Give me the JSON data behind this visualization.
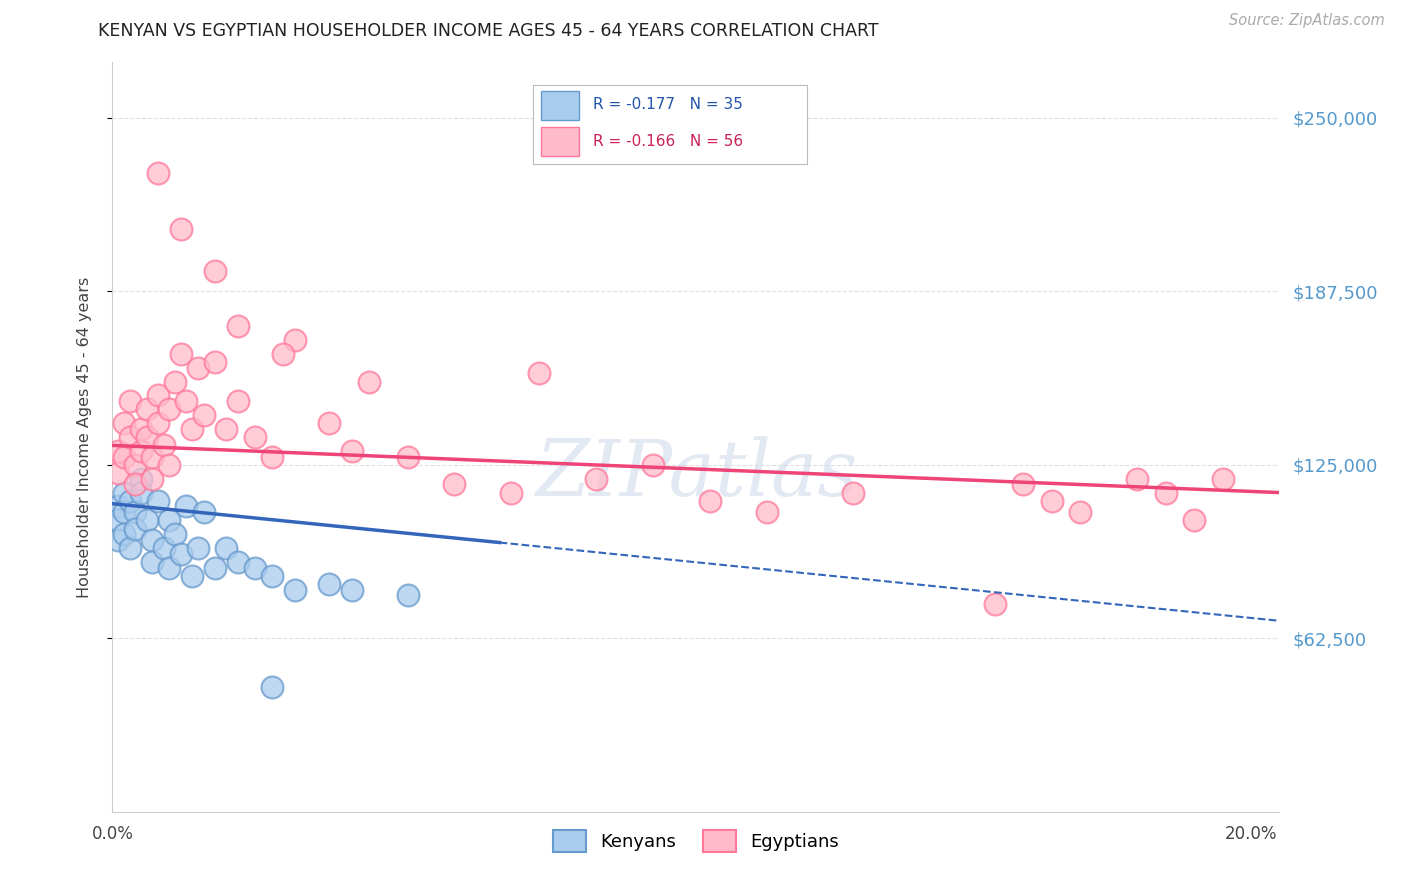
{
  "title": "KENYAN VS EGYPTIAN HOUSEHOLDER INCOME AGES 45 - 64 YEARS CORRELATION CHART",
  "source": "Source: ZipAtlas.com",
  "ylabel": "Householder Income Ages 45 - 64 years",
  "xlim": [
    0.0,
    0.205
  ],
  "ylim": [
    0,
    270000
  ],
  "ytick_vals": [
    62500,
    125000,
    187500,
    250000
  ],
  "ytick_labels": [
    "$62,500",
    "$125,000",
    "$187,500",
    "$250,000"
  ],
  "xtick_vals": [
    0.0,
    0.05,
    0.1,
    0.15,
    0.2
  ],
  "xtick_labels": [
    "0.0%",
    "",
    "",
    "",
    "20.0%"
  ],
  "blue_color": "#5588cc",
  "blue_fill": "#aaccee",
  "blue_edge": "#6699cc",
  "pink_color": "#ee5577",
  "pink_fill": "#ffbbcc",
  "pink_edge": "#ff7799",
  "blue_line_color": "#3366bb",
  "pink_line_color": "#ee4477",
  "blue_r": "R = -0.177",
  "blue_n": "N = 35",
  "pink_r": "R = -0.166",
  "pink_n": "N = 56",
  "kenyan_x": [
    0.001,
    0.001,
    0.001,
    0.002,
    0.002,
    0.002,
    0.003,
    0.003,
    0.004,
    0.004,
    0.005,
    0.005,
    0.006,
    0.007,
    0.007,
    0.008,
    0.009,
    0.01,
    0.01,
    0.011,
    0.012,
    0.013,
    0.014,
    0.015,
    0.016,
    0.018,
    0.02,
    0.022,
    0.025,
    0.028,
    0.032,
    0.038,
    0.042,
    0.052,
    0.028
  ],
  "kenyan_y": [
    110000,
    105000,
    98000,
    115000,
    108000,
    100000,
    112000,
    95000,
    108000,
    102000,
    120000,
    115000,
    105000,
    98000,
    90000,
    112000,
    95000,
    88000,
    105000,
    100000,
    93000,
    110000,
    85000,
    95000,
    108000,
    88000,
    95000,
    90000,
    88000,
    85000,
    80000,
    82000,
    80000,
    78000,
    45000
  ],
  "egyptian_x": [
    0.001,
    0.001,
    0.002,
    0.002,
    0.003,
    0.003,
    0.004,
    0.004,
    0.005,
    0.005,
    0.006,
    0.006,
    0.007,
    0.007,
    0.008,
    0.008,
    0.009,
    0.01,
    0.01,
    0.011,
    0.012,
    0.013,
    0.014,
    0.015,
    0.016,
    0.018,
    0.02,
    0.022,
    0.025,
    0.028,
    0.032,
    0.038,
    0.042,
    0.052,
    0.06,
    0.07,
    0.075,
    0.085,
    0.095,
    0.105,
    0.115,
    0.13,
    0.155,
    0.16,
    0.165,
    0.17,
    0.18,
    0.185,
    0.19,
    0.195,
    0.008,
    0.012,
    0.018,
    0.022,
    0.03,
    0.045
  ],
  "egyptian_y": [
    130000,
    122000,
    140000,
    128000,
    148000,
    135000,
    125000,
    118000,
    138000,
    130000,
    145000,
    135000,
    128000,
    120000,
    150000,
    140000,
    132000,
    125000,
    145000,
    155000,
    165000,
    148000,
    138000,
    160000,
    143000,
    162000,
    138000,
    148000,
    135000,
    128000,
    170000,
    140000,
    130000,
    128000,
    118000,
    115000,
    158000,
    120000,
    125000,
    112000,
    108000,
    115000,
    75000,
    118000,
    112000,
    108000,
    120000,
    115000,
    105000,
    120000,
    230000,
    210000,
    195000,
    175000,
    165000,
    155000
  ]
}
